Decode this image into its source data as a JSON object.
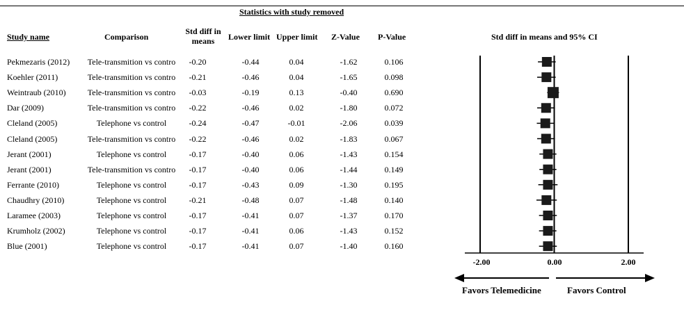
{
  "section_title": "Statistics with study removed",
  "headers": {
    "study": "Study name",
    "comparison": "Comparison",
    "std_diff": "Std diff in means",
    "lower": "Lower limit",
    "upper": "Upper limit",
    "z": "Z-Value",
    "p": "P-Value",
    "plot": "Std diff in means and 95% CI"
  },
  "rows": [
    {
      "study": "Pekmezaris (2012)",
      "comparison": "Tele-transmition vs contro",
      "std": "-0.20",
      "lower": "-0.44",
      "upper": "0.04",
      "z": "-1.62",
      "p": "0.106"
    },
    {
      "study": "Koehler (2011)",
      "comparison": "Tele-transmition vs contro",
      "std": "-0.21",
      "lower": "-0.46",
      "upper": "0.04",
      "z": "-1.65",
      "p": "0.098"
    },
    {
      "study": "Weintraub (2010)",
      "comparison": "Tele-transmition vs contro",
      "std": "-0.03",
      "lower": "-0.19",
      "upper": "0.13",
      "z": "-0.40",
      "p": "0.690"
    },
    {
      "study": "Dar  (2009)",
      "comparison": "Tele-transmition vs contro",
      "std": "-0.22",
      "lower": "-0.46",
      "upper": "0.02",
      "z": "-1.80",
      "p": "0.072"
    },
    {
      "study": "Cleland  (2005)",
      "comparison": "Telephone vs control",
      "std": "-0.24",
      "lower": "-0.47",
      "upper": "-0.01",
      "z": "-2.06",
      "p": "0.039"
    },
    {
      "study": "Cleland  (2005)",
      "comparison": "Tele-transmition vs contro",
      "std": "-0.22",
      "lower": "-0.46",
      "upper": "0.02",
      "z": "-1.83",
      "p": "0.067"
    },
    {
      "study": "Jerant (2001)",
      "comparison": "Telephone vs control",
      "std": "-0.17",
      "lower": "-0.40",
      "upper": "0.06",
      "z": "-1.43",
      "p": "0.154"
    },
    {
      "study": "Jerant (2001)",
      "comparison": "Tele-transmition vs contro",
      "std": "-0.17",
      "lower": "-0.40",
      "upper": "0.06",
      "z": "-1.44",
      "p": "0.149"
    },
    {
      "study": "Ferrante (2010)",
      "comparison": "Telephone vs control",
      "std": "-0.17",
      "lower": "-0.43",
      "upper": "0.09",
      "z": "-1.30",
      "p": "0.195"
    },
    {
      "study": "Chaudhry (2010)",
      "comparison": "Telephone vs control",
      "std": "-0.21",
      "lower": "-0.48",
      "upper": "0.07",
      "z": "-1.48",
      "p": "0.140"
    },
    {
      "study": "Laramee  (2003)",
      "comparison": "Telephone vs control",
      "std": "-0.17",
      "lower": "-0.41",
      "upper": "0.07",
      "z": "-1.37",
      "p": "0.170"
    },
    {
      "study": "Krumholz (2002)",
      "comparison": "Telephone vs control",
      "std": "-0.17",
      "lower": "-0.41",
      "upper": "0.06",
      "z": "-1.43",
      "p": "0.152"
    },
    {
      "study": "Blue  (2001)",
      "comparison": "Telephone vs control",
      "std": "-0.17",
      "lower": "-0.41",
      "upper": "0.07",
      "z": "-1.40",
      "p": "0.160"
    }
  ],
  "chart_data": {
    "type": "forest",
    "title": "Std diff in means and 95% CI",
    "xlim": [
      -2.0,
      2.0
    ],
    "x_ticks": [
      "-2.00",
      "0.00",
      "2.00"
    ],
    "left_label": "Favors Telemedicine",
    "right_label": "Favors Control",
    "points": [
      {
        "label": "Pekmezaris (2012)",
        "value": -0.2,
        "lower": -0.44,
        "upper": 0.04
      },
      {
        "label": "Koehler (2011)",
        "value": -0.21,
        "lower": -0.46,
        "upper": 0.04
      },
      {
        "label": "Weintraub (2010)",
        "value": -0.03,
        "lower": -0.19,
        "upper": 0.13
      },
      {
        "label": "Dar (2009)",
        "value": -0.22,
        "lower": -0.46,
        "upper": 0.02
      },
      {
        "label": "Cleland (2005)",
        "value": -0.24,
        "lower": -0.47,
        "upper": -0.01
      },
      {
        "label": "Cleland (2005)",
        "value": -0.22,
        "lower": -0.46,
        "upper": 0.02
      },
      {
        "label": "Jerant (2001)",
        "value": -0.17,
        "lower": -0.4,
        "upper": 0.06
      },
      {
        "label": "Jerant (2001)",
        "value": -0.17,
        "lower": -0.4,
        "upper": 0.06
      },
      {
        "label": "Ferrante (2010)",
        "value": -0.17,
        "lower": -0.43,
        "upper": 0.09
      },
      {
        "label": "Chaudhry (2010)",
        "value": -0.21,
        "lower": -0.48,
        "upper": 0.07
      },
      {
        "label": "Laramee (2003)",
        "value": -0.17,
        "lower": -0.41,
        "upper": 0.07
      },
      {
        "label": "Krumholz (2002)",
        "value": -0.17,
        "lower": -0.41,
        "upper": 0.06
      },
      {
        "label": "Blue (2001)",
        "value": -0.17,
        "lower": -0.41,
        "upper": 0.07
      }
    ]
  }
}
